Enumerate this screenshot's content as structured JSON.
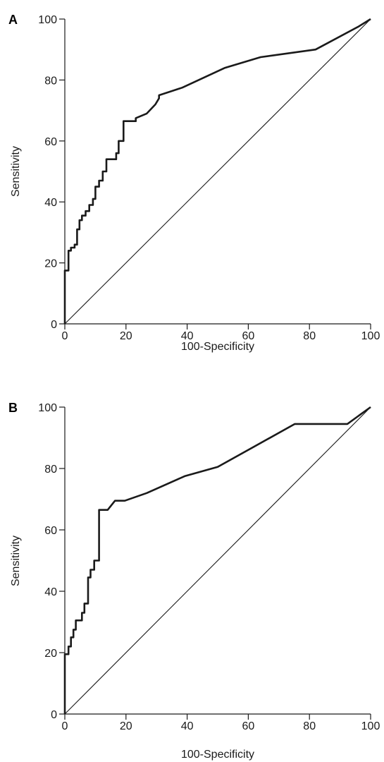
{
  "chart_data": [
    {
      "type": "line",
      "panel_label": "A",
      "xlabel": "100-Specificity",
      "ylabel": "Sensitivity",
      "xlim": [
        0,
        100
      ],
      "ylim": [
        0,
        100
      ],
      "xticks": [
        0,
        20,
        40,
        60,
        80,
        100
      ],
      "yticks": [
        0,
        20,
        40,
        60,
        80,
        100
      ],
      "xtick_labels": [
        "0",
        "20",
        "40",
        "60",
        "80",
        "100"
      ],
      "ytick_labels": [
        "0",
        "20",
        "40",
        "60",
        "80",
        "100"
      ],
      "grid": false,
      "series": [
        {
          "x": [
            0,
            0,
            1.2,
            1.2,
            2.0,
            2.0,
            3.2,
            3.2,
            4.0,
            4.0,
            4.8,
            4.8,
            5.6,
            5.6,
            6.8,
            6.8,
            8.0,
            8.0,
            9.2,
            9.2,
            10.0,
            10.0,
            11.2,
            11.2,
            12.4,
            12.4,
            13.6,
            13.6,
            16.8,
            16.8,
            17.6,
            17.6,
            19.2,
            19.2,
            23.2,
            23.2,
            26.8,
            29.6,
            30.8,
            30.8,
            38.4,
            52.4,
            64.0,
            82.0,
            96.0,
            100
          ],
          "y": [
            0,
            17.5,
            17.5,
            24.0,
            24.0,
            25.0,
            25.0,
            26.0,
            26.0,
            31.0,
            31.0,
            34.0,
            34.0,
            35.5,
            35.5,
            37.0,
            37.0,
            39.0,
            39.0,
            41.0,
            41.0,
            45.0,
            45.0,
            47.0,
            47.0,
            50.0,
            50.0,
            54.0,
            54.0,
            56.0,
            56.0,
            60.0,
            60.0,
            66.5,
            66.5,
            67.5,
            69.0,
            72.0,
            74.0,
            75.0,
            77.5,
            84.0,
            87.5,
            90.0,
            97.5,
            100
          ]
        },
        {
          "x": [
            0,
            100
          ],
          "y": [
            0,
            100
          ]
        }
      ]
    },
    {
      "type": "line",
      "panel_label": "B",
      "xlabel": "100-Specificity",
      "ylabel": "Sensitivity",
      "xlim": [
        0,
        100
      ],
      "ylim": [
        0,
        100
      ],
      "xticks": [
        0,
        20,
        40,
        60,
        80,
        100
      ],
      "yticks": [
        0,
        20,
        40,
        60,
        80,
        100
      ],
      "xtick_labels": [
        "0",
        "20",
        "40",
        "60",
        "80",
        "100"
      ],
      "ytick_labels": [
        "0",
        "20",
        "40",
        "60",
        "80",
        "100"
      ],
      "grid": false,
      "series": [
        {
          "x": [
            0,
            0,
            1.2,
            1.2,
            2.0,
            2.0,
            2.8,
            2.8,
            3.6,
            3.6,
            5.6,
            5.6,
            6.4,
            6.4,
            7.6,
            7.6,
            8.4,
            8.4,
            9.6,
            9.6,
            11.2,
            11.2,
            14.0,
            16.4,
            19.6,
            26.8,
            39.2,
            50.0,
            75.2,
            92.4,
            100
          ],
          "y": [
            0,
            19.5,
            19.5,
            22.0,
            22.0,
            25.0,
            25.0,
            27.5,
            27.5,
            30.5,
            30.5,
            33.0,
            33.0,
            36.0,
            36.0,
            44.5,
            44.5,
            47.0,
            47.0,
            50.0,
            50.0,
            66.5,
            66.5,
            69.5,
            69.5,
            72.0,
            77.5,
            80.5,
            94.5,
            94.5,
            100
          ]
        },
        {
          "x": [
            0,
            100
          ],
          "y": [
            0,
            100
          ]
        }
      ]
    }
  ]
}
